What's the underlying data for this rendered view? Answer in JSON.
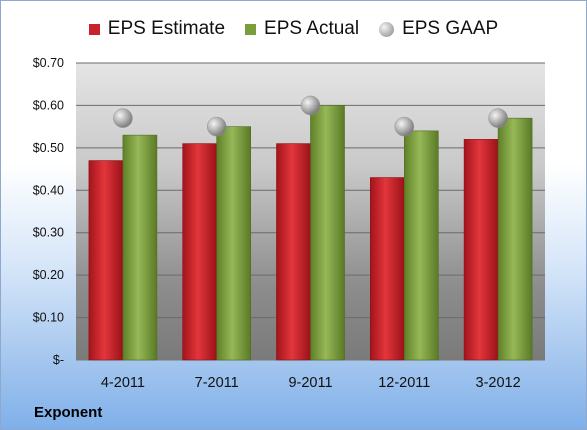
{
  "chart_data": {
    "type": "bar",
    "categories": [
      "4-2011",
      "7-2011",
      "9-2011",
      "12-2011",
      "3-2012"
    ],
    "series": [
      {
        "name": "EPS Estimate",
        "kind": "bar",
        "color": "#c8232a",
        "values": [
          0.47,
          0.51,
          0.51,
          0.43,
          0.52
        ]
      },
      {
        "name": "EPS Actual",
        "kind": "bar",
        "color": "#7a9e3c",
        "values": [
          0.53,
          0.55,
          0.6,
          0.54,
          0.57
        ]
      },
      {
        "name": "EPS GAAP",
        "kind": "marker",
        "color": "#a0a0a0",
        "values": [
          0.57,
          0.55,
          0.6,
          0.55,
          0.57
        ]
      }
    ],
    "ylim": [
      0,
      0.7
    ],
    "yticks": [
      0,
      0.1,
      0.2,
      0.3,
      0.4,
      0.5,
      0.6,
      0.7
    ],
    "ytick_labels": [
      "$-",
      "$0.10",
      "$0.20",
      "$0.30",
      "$0.40",
      "$0.50",
      "$0.60",
      "$0.70"
    ],
    "grid": true,
    "legend_position": "top"
  },
  "footer": {
    "source_label": "Exponent"
  }
}
